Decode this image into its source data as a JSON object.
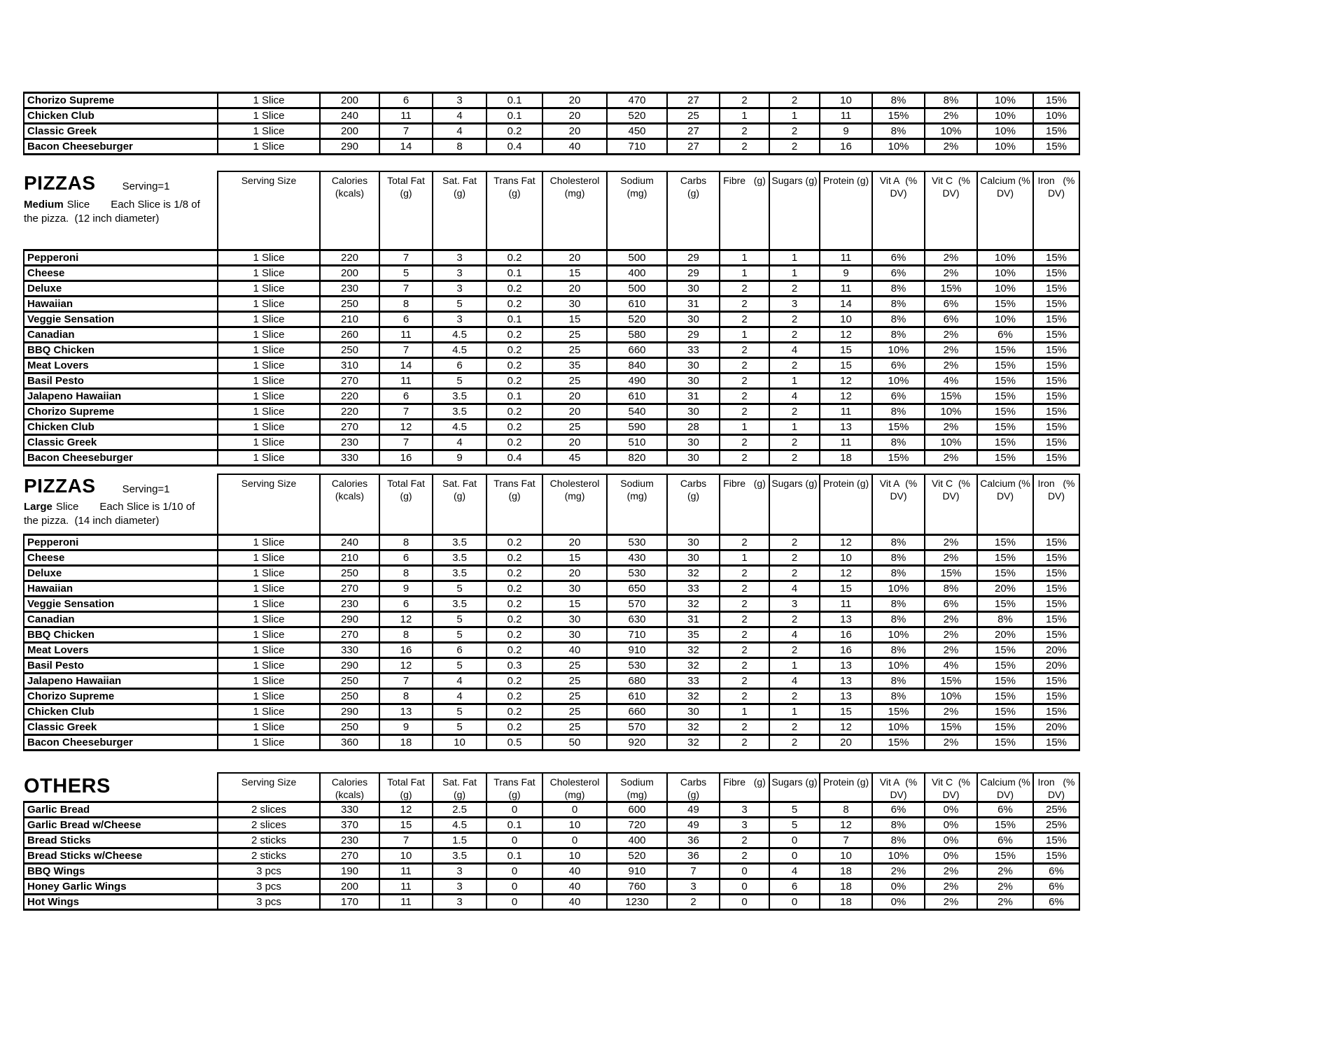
{
  "column_headers": [
    {
      "key": "serving-size",
      "l1": "Serving Size",
      "l2": ""
    },
    {
      "key": "calories",
      "l1": "Calories",
      "l2": "(kcals)"
    },
    {
      "key": "total-fat",
      "l1": "Total Fat",
      "l2": "(g)"
    },
    {
      "key": "sat-fat",
      "l1": "Sat. Fat",
      "l2": "(g)"
    },
    {
      "key": "trans-fat",
      "l1": "Trans Fat",
      "l2": "(g)"
    },
    {
      "key": "cholesterol",
      "l1": "Cholesterol",
      "l2": "(mg)"
    },
    {
      "key": "sodium",
      "l1": "Sodium",
      "l2": "(mg)"
    },
    {
      "key": "carbs",
      "l1": "Carbs",
      "l2": "(g)"
    },
    {
      "key": "fibre",
      "l1": "Fibre   (g)",
      "l2": ""
    },
    {
      "key": "sugars",
      "l1": "Sugars (g)",
      "l2": ""
    },
    {
      "key": "protein",
      "l1": "Protein (g)",
      "l2": ""
    },
    {
      "key": "vit-a",
      "l1": "Vit A  (%",
      "l2": "DV)"
    },
    {
      "key": "vit-c",
      "l1": "Vit C  (%",
      "l2": "DV)"
    },
    {
      "key": "calcium",
      "l1": "Calcium (%",
      "l2": "DV)"
    },
    {
      "key": "iron",
      "l1": "Iron   (%",
      "l2": "DV)"
    }
  ],
  "sections": {
    "continued": {
      "rows": [
        {
          "name": "Chorizo Supreme",
          "cells": [
            "1 Slice",
            "200",
            "6",
            "3",
            "0.1",
            "20",
            "470",
            "27",
            "2",
            "2",
            "10",
            "8%",
            "8%",
            "10%",
            "15%"
          ]
        },
        {
          "name": "Chicken Club",
          "cells": [
            "1 Slice",
            "240",
            "11",
            "4",
            "0.1",
            "20",
            "520",
            "25",
            "1",
            "1",
            "11",
            "15%",
            "2%",
            "10%",
            "10%"
          ]
        },
        {
          "name": "Classic Greek",
          "cells": [
            "1 Slice",
            "200",
            "7",
            "4",
            "0.2",
            "20",
            "450",
            "27",
            "2",
            "2",
            "9",
            "8%",
            "10%",
            "10%",
            "15%"
          ]
        },
        {
          "name": "Bacon Cheeseburger",
          "cells": [
            "1 Slice",
            "290",
            "14",
            "8",
            "0.4",
            "40",
            "710",
            "27",
            "2",
            "2",
            "16",
            "10%",
            "2%",
            "10%",
            "15%"
          ]
        }
      ]
    },
    "medium": {
      "title": "PIZZAS",
      "serving": "Serving=1",
      "subtitle_bold": "Medium",
      "subtitle_mid": "Slice",
      "subtitle_right": "Each Slice is 1/8 of",
      "subtitle_line2": "the pizza.  (12 inch diameter)",
      "rows": [
        {
          "name": "Pepperoni",
          "cells": [
            "1 Slice",
            "220",
            "7",
            "3",
            "0.2",
            "20",
            "500",
            "29",
            "1",
            "1",
            "11",
            "6%",
            "2%",
            "10%",
            "15%"
          ]
        },
        {
          "name": "Cheese",
          "cells": [
            "1 Slice",
            "200",
            "5",
            "3",
            "0.1",
            "15",
            "400",
            "29",
            "1",
            "1",
            "9",
            "6%",
            "2%",
            "10%",
            "15%"
          ]
        },
        {
          "name": "Deluxe",
          "cells": [
            "1 Slice",
            "230",
            "7",
            "3",
            "0.2",
            "20",
            "500",
            "30",
            "2",
            "2",
            "11",
            "8%",
            "15%",
            "10%",
            "15%"
          ]
        },
        {
          "name": "Hawaiian",
          "cells": [
            "1 Slice",
            "250",
            "8",
            "5",
            "0.2",
            "30",
            "610",
            "31",
            "2",
            "3",
            "14",
            "8%",
            "6%",
            "15%",
            "15%"
          ]
        },
        {
          "name": "Veggie Sensation",
          "cells": [
            "1 Slice",
            "210",
            "6",
            "3",
            "0.1",
            "15",
            "520",
            "30",
            "2",
            "2",
            "10",
            "8%",
            "6%",
            "10%",
            "15%"
          ]
        },
        {
          "name": "Canadian",
          "cells": [
            "1 Slice",
            "260",
            "11",
            "4.5",
            "0.2",
            "25",
            "580",
            "29",
            "1",
            "2",
            "12",
            "8%",
            "2%",
            "6%",
            "15%"
          ]
        },
        {
          "name": "BBQ Chicken",
          "cells": [
            "1 Slice",
            "250",
            "7",
            "4.5",
            "0.2",
            "25",
            "660",
            "33",
            "2",
            "4",
            "15",
            "10%",
            "2%",
            "15%",
            "15%"
          ]
        },
        {
          "name": "Meat Lovers",
          "cells": [
            "1 Slice",
            "310",
            "14",
            "6",
            "0.2",
            "35",
            "840",
            "30",
            "2",
            "2",
            "15",
            "6%",
            "2%",
            "15%",
            "15%"
          ]
        },
        {
          "name": "Basil Pesto",
          "cells": [
            "1 Slice",
            "270",
            "11",
            "5",
            "0.2",
            "25",
            "490",
            "30",
            "2",
            "1",
            "12",
            "10%",
            "4%",
            "15%",
            "15%"
          ]
        },
        {
          "name": "Jalapeno Hawaiian",
          "cells": [
            "1 Slice",
            "220",
            "6",
            "3.5",
            "0.1",
            "20",
            "610",
            "31",
            "2",
            "4",
            "12",
            "6%",
            "15%",
            "15%",
            "15%"
          ]
        },
        {
          "name": "Chorizo Supreme",
          "cells": [
            "1 Slice",
            "220",
            "7",
            "3.5",
            "0.2",
            "20",
            "540",
            "30",
            "2",
            "2",
            "11",
            "8%",
            "10%",
            "15%",
            "15%"
          ]
        },
        {
          "name": "Chicken Club",
          "cells": [
            "1 Slice",
            "270",
            "12",
            "4.5",
            "0.2",
            "25",
            "590",
            "28",
            "1",
            "1",
            "13",
            "15%",
            "2%",
            "15%",
            "15%"
          ]
        },
        {
          "name": "Classic Greek",
          "cells": [
            "1 Slice",
            "230",
            "7",
            "4",
            "0.2",
            "20",
            "510",
            "30",
            "2",
            "2",
            "11",
            "8%",
            "10%",
            "15%",
            "15%"
          ]
        },
        {
          "name": "Bacon Cheeseburger",
          "cells": [
            "1 Slice",
            "330",
            "16",
            "9",
            "0.4",
            "45",
            "820",
            "30",
            "2",
            "2",
            "18",
            "15%",
            "2%",
            "15%",
            "15%"
          ]
        }
      ]
    },
    "large": {
      "title": "PIZZAS",
      "serving": "Serving=1",
      "subtitle_bold": "Large",
      "subtitle_mid": "Slice",
      "subtitle_right": "Each Slice is 1/10 of",
      "subtitle_line2": "the pizza.  (14 inch diameter)",
      "rows": [
        {
          "name": "Pepperoni",
          "cells": [
            "1 Slice",
            "240",
            "8",
            "3.5",
            "0.2",
            "20",
            "530",
            "30",
            "2",
            "2",
            "12",
            "8%",
            "2%",
            "15%",
            "15%"
          ]
        },
        {
          "name": "Cheese",
          "cells": [
            "1 Slice",
            "210",
            "6",
            "3.5",
            "0.2",
            "15",
            "430",
            "30",
            "1",
            "2",
            "10",
            "8%",
            "2%",
            "15%",
            "15%"
          ]
        },
        {
          "name": "Deluxe",
          "cells": [
            "1 Slice",
            "250",
            "8",
            "3.5",
            "0.2",
            "20",
            "530",
            "32",
            "2",
            "2",
            "12",
            "8%",
            "15%",
            "15%",
            "15%"
          ]
        },
        {
          "name": "Hawaiian",
          "cells": [
            "1 Slice",
            "270",
            "9",
            "5",
            "0.2",
            "30",
            "650",
            "33",
            "2",
            "4",
            "15",
            "10%",
            "8%",
            "20%",
            "15%"
          ]
        },
        {
          "name": "Veggie Sensation",
          "cells": [
            "1 Slice",
            "230",
            "6",
            "3.5",
            "0.2",
            "15",
            "570",
            "32",
            "2",
            "3",
            "11",
            "8%",
            "6%",
            "15%",
            "15%"
          ]
        },
        {
          "name": "Canadian",
          "cells": [
            "1 Slice",
            "290",
            "12",
            "5",
            "0.2",
            "30",
            "630",
            "31",
            "2",
            "2",
            "13",
            "8%",
            "2%",
            "8%",
            "15%"
          ]
        },
        {
          "name": "BBQ Chicken",
          "cells": [
            "1 Slice",
            "270",
            "8",
            "5",
            "0.2",
            "30",
            "710",
            "35",
            "2",
            "4",
            "16",
            "10%",
            "2%",
            "20%",
            "15%"
          ]
        },
        {
          "name": "Meat Lovers",
          "cells": [
            "1 Slice",
            "330",
            "16",
            "6",
            "0.2",
            "40",
            "910",
            "32",
            "2",
            "2",
            "16",
            "8%",
            "2%",
            "15%",
            "20%"
          ]
        },
        {
          "name": "Basil Pesto",
          "cells": [
            "1 Slice",
            "290",
            "12",
            "5",
            "0.3",
            "25",
            "530",
            "32",
            "2",
            "1",
            "13",
            "10%",
            "4%",
            "15%",
            "20%"
          ]
        },
        {
          "name": "Jalapeno Hawaiian",
          "cells": [
            "1 Slice",
            "250",
            "7",
            "4",
            "0.2",
            "25",
            "680",
            "33",
            "2",
            "4",
            "13",
            "8%",
            "15%",
            "15%",
            "15%"
          ]
        },
        {
          "name": "Chorizo Supreme",
          "cells": [
            "1 Slice",
            "250",
            "8",
            "4",
            "0.2",
            "25",
            "610",
            "32",
            "2",
            "2",
            "13",
            "8%",
            "10%",
            "15%",
            "15%"
          ]
        },
        {
          "name": "Chicken Club",
          "cells": [
            "1 Slice",
            "290",
            "13",
            "5",
            "0.2",
            "25",
            "660",
            "30",
            "1",
            "1",
            "15",
            "15%",
            "2%",
            "15%",
            "15%"
          ]
        },
        {
          "name": "Classic Greek",
          "cells": [
            "1 Slice",
            "250",
            "9",
            "5",
            "0.2",
            "25",
            "570",
            "32",
            "2",
            "2",
            "12",
            "10%",
            "15%",
            "15%",
            "20%"
          ]
        },
        {
          "name": "Bacon Cheeseburger",
          "cells": [
            "1 Slice",
            "360",
            "18",
            "10",
            "0.5",
            "50",
            "920",
            "32",
            "2",
            "2",
            "20",
            "15%",
            "2%",
            "15%",
            "15%"
          ]
        }
      ]
    },
    "others": {
      "title": "OTHERS",
      "rows": [
        {
          "name": "Garlic Bread",
          "cells": [
            "2 slices",
            "330",
            "12",
            "2.5",
            "0",
            "0",
            "600",
            "49",
            "3",
            "5",
            "8",
            "6%",
            "0%",
            "6%",
            "25%"
          ]
        },
        {
          "name": "Garlic Bread w/Cheese",
          "cells": [
            "2 slices",
            "370",
            "15",
            "4.5",
            "0.1",
            "10",
            "720",
            "49",
            "3",
            "5",
            "12",
            "8%",
            "0%",
            "15%",
            "25%"
          ]
        },
        {
          "name": "Bread Sticks",
          "cells": [
            "2 sticks",
            "230",
            "7",
            "1.5",
            "0",
            "0",
            "400",
            "36",
            "2",
            "0",
            "7",
            "8%",
            "0%",
            "6%",
            "15%"
          ]
        },
        {
          "name": "Bread Sticks w/Cheese",
          "cells": [
            "2 sticks",
            "270",
            "10",
            "3.5",
            "0.1",
            "10",
            "520",
            "36",
            "2",
            "0",
            "10",
            "10%",
            "0%",
            "15%",
            "15%"
          ]
        },
        {
          "name": "BBQ Wings",
          "cells": [
            "3 pcs",
            "190",
            "11",
            "3",
            "0",
            "40",
            "910",
            "7",
            "0",
            "4",
            "18",
            "2%",
            "2%",
            "2%",
            "6%"
          ]
        },
        {
          "name": "Honey Garlic Wings",
          "cells": [
            "3 pcs",
            "200",
            "11",
            "3",
            "0",
            "40",
            "760",
            "3",
            "0",
            "6",
            "18",
            "0%",
            "2%",
            "2%",
            "6%"
          ]
        },
        {
          "name": "Hot Wings",
          "cells": [
            "3 pcs",
            "170",
            "11",
            "3",
            "0",
            "40",
            "1230",
            "2",
            "0",
            "0",
            "18",
            "0%",
            "2%",
            "2%",
            "6%"
          ]
        }
      ]
    }
  }
}
